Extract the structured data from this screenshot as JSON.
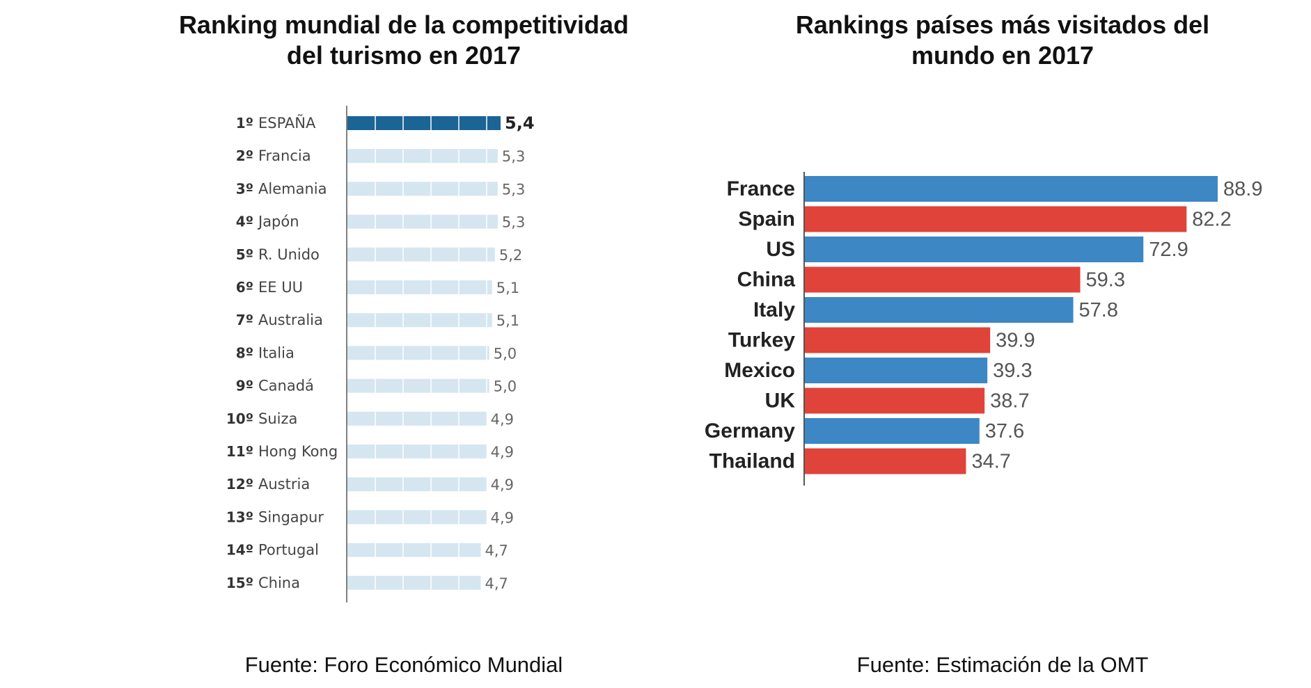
{
  "titles": {
    "left_line1": "Ranking mundial de la competitividad",
    "left_line2": "del turismo en 2017",
    "right_line1": "Rankings países más visitados del",
    "right_line2": "mundo en 2017"
  },
  "sources": {
    "left": "Fuente: Foro Económico Mundial",
    "right": "Fuente: Estimación de la OMT"
  },
  "colors": {
    "rank_highlight": "#1a6496",
    "rank_bar": "#d5e6f0",
    "visited_blue": "#3d87c4",
    "visited_red": "#e0433a",
    "axis": "#555555"
  },
  "chart_data": [
    {
      "type": "bar",
      "orientation": "horizontal",
      "title": "Ranking mundial de la competitividad del turismo en 2017",
      "ranks": [
        "1º",
        "2º",
        "3º",
        "4º",
        "5º",
        "6º",
        "7º",
        "8º",
        "9º",
        "10º",
        "11º",
        "12º",
        "13º",
        "14º",
        "15º"
      ],
      "categories": [
        "ESPAÑA",
        "Francia",
        "Alemania",
        "Japón",
        "R. Unido",
        "EE UU",
        "Australia",
        "Italia",
        "Canadá",
        "Suiza",
        "Hong Kong",
        "Austria",
        "Singapur",
        "Portugal",
        "China"
      ],
      "values": [
        5.4,
        5.3,
        5.3,
        5.3,
        5.2,
        5.1,
        5.1,
        5.0,
        5.0,
        4.9,
        4.9,
        4.9,
        4.9,
        4.7,
        4.7
      ],
      "value_labels": [
        "5,4",
        "5,3",
        "5,3",
        "5,3",
        "5,2",
        "5,1",
        "5,1",
        "5,0",
        "5,0",
        "4,9",
        "4,9",
        "4,9",
        "4,9",
        "4,7",
        "4,7"
      ],
      "highlight_index": 0,
      "source": "Fuente: Foro Económico Mundial"
    },
    {
      "type": "bar",
      "orientation": "horizontal",
      "title": "Rankings países más visitados del mundo en 2017",
      "categories": [
        "France",
        "Spain",
        "US",
        "China",
        "Italy",
        "Turkey",
        "Mexico",
        "UK",
        "Germany",
        "Thailand"
      ],
      "values": [
        88.9,
        82.2,
        72.9,
        59.3,
        57.8,
        39.9,
        39.3,
        38.7,
        37.6,
        34.7
      ],
      "value_labels": [
        "88.9",
        "82.2",
        "72.9",
        "59.3",
        "57.8",
        "39.9",
        "39.3",
        "38.7",
        "37.6",
        "34.7"
      ],
      "bar_colors": [
        "blue",
        "red",
        "blue",
        "red",
        "blue",
        "red",
        "blue",
        "red",
        "blue",
        "red"
      ],
      "source": "Fuente: Estimación de la OMT"
    }
  ]
}
